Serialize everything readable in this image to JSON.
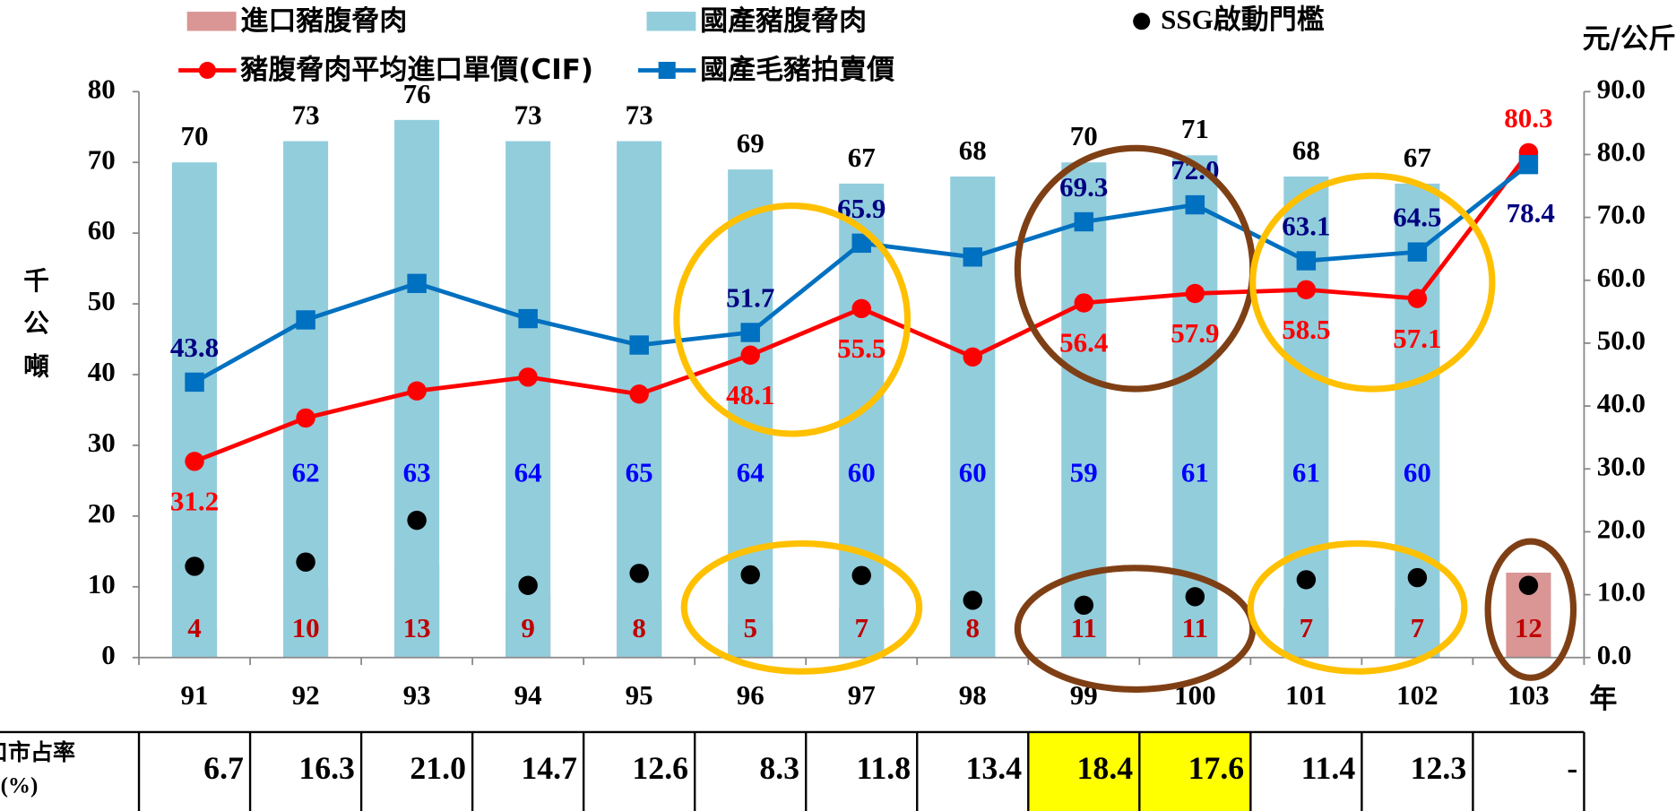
{
  "chart_data": {
    "type": "bar",
    "categories": [
      "91",
      "92",
      "93",
      "94",
      "95",
      "96",
      "97",
      "98",
      "99",
      "100",
      "101",
      "102",
      "103"
    ],
    "x_unit": "年",
    "ylabel": "千公噸",
    "y2label": "元/公斤",
    "ylim": [
      0,
      80
    ],
    "yticks": [
      0,
      10,
      20,
      30,
      40,
      50,
      60,
      70,
      80
    ],
    "y2lim": [
      0,
      90
    ],
    "y2ticks": [
      {
        "value": 0,
        "label": "0.0"
      },
      {
        "value": 10,
        "label": "10.0"
      },
      {
        "value": 20,
        "label": "20.0"
      },
      {
        "value": 30,
        "label": "30.0"
      },
      {
        "value": 40,
        "label": "40.0"
      },
      {
        "value": 50,
        "label": "50.0"
      },
      {
        "value": 60,
        "label": "60.0"
      },
      {
        "value": 70,
        "label": "70.0"
      },
      {
        "value": 80,
        "label": "80.0"
      },
      {
        "value": 90,
        "label": "90.0"
      }
    ],
    "totals": [
      70,
      73,
      76,
      73,
      73,
      69,
      67,
      68,
      70,
      71,
      68,
      67,
      null
    ],
    "series": [
      {
        "name": "進口豬腹脅肉",
        "type": "bar",
        "color": "#d99694",
        "label_color": "#c00000",
        "values": [
          4,
          10,
          13,
          9,
          8,
          5,
          7,
          8,
          11,
          11,
          7,
          7,
          12
        ]
      },
      {
        "name": "國產豬腹脅肉",
        "type": "bar",
        "color": "#92cddc",
        "label_color": "#0000ff",
        "values": [
          null,
          62,
          63,
          64,
          65,
          64,
          60,
          60,
          59,
          61,
          61,
          60,
          null
        ]
      },
      {
        "name": "SSG啟動門檻",
        "type": "scatter",
        "color": "#000000",
        "values": [
          12.9,
          13.5,
          19.4,
          10.2,
          11.9,
          11.7,
          11.6,
          8.1,
          7.4,
          8.6,
          11.0,
          11.3,
          10.2
        ]
      },
      {
        "name": "豬腹脅肉平均進口單價(CIF)",
        "type": "line",
        "axis": "y2",
        "color": "#ff0000",
        "label_color": "#ff0000",
        "values": [
          31.2,
          38.1,
          42.4,
          44.6,
          41.9,
          48.1,
          55.5,
          47.8,
          56.4,
          57.9,
          58.5,
          57.1,
          80.3
        ],
        "value_labels": [
          "31.2",
          null,
          null,
          null,
          null,
          "48.1",
          "55.5",
          null,
          "56.4",
          "57.9",
          "58.5",
          "57.1",
          "80.3"
        ]
      },
      {
        "name": "國產毛豬拍賣價",
        "type": "line",
        "axis": "y2",
        "color": "#0070c0",
        "label_color": "#000080",
        "values": [
          43.8,
          53.7,
          59.5,
          53.9,
          49.7,
          51.7,
          65.9,
          63.7,
          69.3,
          72.0,
          63.1,
          64.5,
          78.4
        ],
        "value_labels": [
          "43.8",
          null,
          null,
          null,
          null,
          "51.7",
          "65.9",
          null,
          "69.3",
          "72.0",
          "63.1",
          "64.5",
          "78.4"
        ]
      }
    ]
  },
  "table": {
    "label": [
      "進口市占率",
      "(%)"
    ],
    "values": [
      "6.7",
      "16.3",
      "21.0",
      "14.7",
      "12.6",
      "8.3",
      "11.8",
      "13.4",
      "18.4",
      "17.6",
      "11.4",
      "12.3",
      "-"
    ],
    "highlight": [
      8,
      9
    ],
    "highlight_color": "#ffff00"
  }
}
